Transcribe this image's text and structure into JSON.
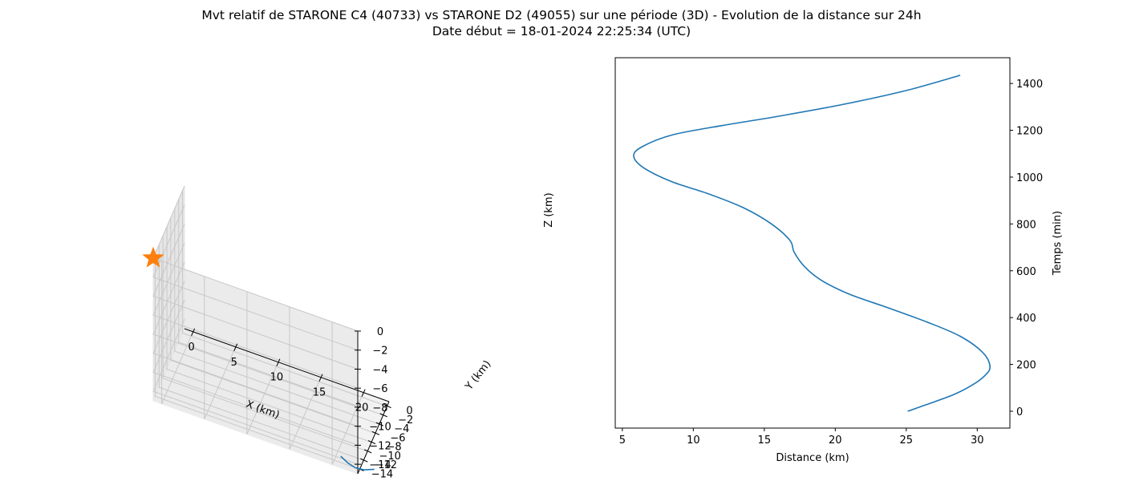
{
  "figure": {
    "title_line1": "Mvt relatif de STARONE C4 (40733) vs STARONE D2 (49055) sur une période (3D) - Evolution de la distance sur 24h",
    "title_line2": "Date début = 18-01-2024 22:25:34 (UTC)"
  },
  "chart_data": [
    {
      "type": "line3d",
      "xlabel": "X (km)",
      "ylabel": "Y (km)",
      "zlabel": "Z (km)",
      "xticks": [
        0,
        5,
        10,
        15,
        20
      ],
      "yticks": [
        0,
        -2,
        -4,
        -6,
        -8,
        -10,
        -12,
        -14
      ],
      "zticks": [
        0,
        -2,
        -4,
        -6,
        -8,
        -10,
        -12,
        -14
      ],
      "xlim": [
        -1,
        23
      ],
      "ylim": [
        1,
        -15
      ],
      "zlim": [
        -15,
        0
      ],
      "grid": true,
      "series_color": "#1f77b4",
      "marker": {
        "shape": "star",
        "color": "#ff7f0e",
        "x": -1,
        "y": -15,
        "z": 0
      },
      "series": [
        {
          "x": [
            20.5,
            21.5,
            22.5,
            23.5,
            24.5
          ],
          "y": [
            -12.8,
            -13.6,
            -14.0,
            -13.8,
            -13.0
          ],
          "z": [
            -15,
            -15,
            -15,
            -15,
            -15
          ]
        }
      ]
    },
    {
      "type": "line",
      "xlabel": "Distance (km)",
      "ylabel": "Temps (min)",
      "xlim": [
        4.5,
        32.3
      ],
      "ylim": [
        -72,
        1510
      ],
      "xticks": [
        5,
        10,
        15,
        20,
        25,
        30
      ],
      "yticks": [
        0,
        200,
        400,
        600,
        800,
        1000,
        1200,
        1400
      ],
      "yaxis_side": "right",
      "grid": false,
      "series_color": "#1f77b4",
      "series": [
        {
          "x": [
            25.1,
            26.5,
            28.3,
            29.6,
            30.5,
            30.9,
            30.4,
            28.8,
            26.5,
            23.8,
            21.0,
            19.0,
            17.8,
            17.1,
            16.8,
            15.5,
            13.5,
            11.0,
            8.5,
            6.5,
            5.8,
            6.4,
            8.5,
            12.0,
            16.0,
            20.5,
            25.0,
            28.8
          ],
          "y": [
            0,
            30,
            70,
            110,
            150,
            190,
            250,
            320,
            380,
            440,
            500,
            560,
            620,
            680,
            730,
            800,
            870,
            930,
            980,
            1040,
            1090,
            1130,
            1180,
            1220,
            1260,
            1310,
            1370,
            1435
          ]
        }
      ]
    }
  ]
}
